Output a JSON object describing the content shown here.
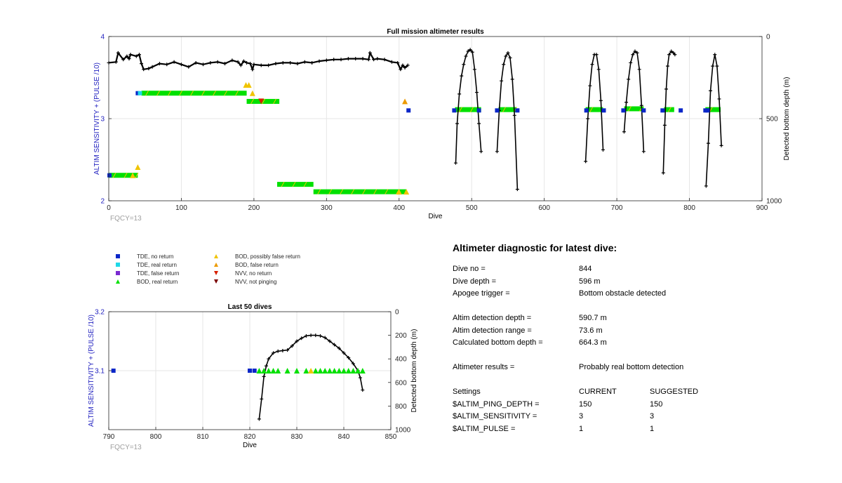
{
  "fig_bg": "#ffffff",
  "chart_data": [
    {
      "type": "scatter",
      "title": "Full mission altimeter results",
      "xlabel": "Dive",
      "ylabel": "ALTIM SENSITIVITY + (PULSE /10)",
      "y2label": "Detected bottom depth (m)",
      "xlim": [
        0,
        900
      ],
      "ylim": [
        2,
        4
      ],
      "y2lim": [
        1000,
        0
      ],
      "xticks": [
        0,
        100,
        200,
        300,
        400,
        500,
        600,
        700,
        800,
        900
      ],
      "yticks": [
        2,
        3,
        4
      ],
      "y2ticks": [
        0,
        500,
        1000
      ],
      "grid": true,
      "annotation": "FQCY=13",
      "bod_bands": [
        {
          "x": [
            45,
            190
          ],
          "y": 3.31
        },
        {
          "x": [
            190,
            235
          ],
          "y": 3.21
        },
        {
          "x": [
            0,
            40
          ],
          "y": 2.31
        },
        {
          "x": [
            232,
            282
          ],
          "y": 2.2
        },
        {
          "x": [
            282,
            410
          ],
          "y": 2.11
        },
        {
          "x": [
            477,
            513
          ],
          "y": 3.11
        },
        {
          "x": [
            537,
            562
          ],
          "y": 3.11
        },
        {
          "x": [
            657,
            681
          ],
          "y": 3.11
        },
        {
          "x": [
            710,
            737
          ],
          "y": 3.12
        },
        {
          "x": [
            765,
            779
          ],
          "y": 3.11
        },
        {
          "x": [
            822,
            843
          ],
          "y": 3.11
        }
      ],
      "series": [
        {
          "name": "TDE, no return",
          "marker": "square",
          "color": "#0a26c8",
          "x": [
            1,
            40,
            413,
            476,
            510,
            535,
            563,
            658,
            682,
            709,
            737,
            763,
            788,
            822,
            825
          ],
          "y": [
            2.31,
            3.31,
            3.1,
            3.1,
            3.1,
            3.1,
            3.1,
            3.1,
            3.1,
            3.1,
            3.1,
            3.1,
            3.1,
            3.1,
            3.1
          ]
        },
        {
          "name": "TDE, real return",
          "marker": "square",
          "color": "#1fd8e8",
          "x": [
            43
          ],
          "y": [
            3.31
          ]
        },
        {
          "name": "BOD, possibly false return",
          "marker": "triangle",
          "color": "#f0c400",
          "x": [
            40,
            33,
            189,
            193,
            198,
            400,
            410
          ],
          "y": [
            2.41,
            2.31,
            3.41,
            3.41,
            3.31,
            2.11,
            2.11
          ]
        },
        {
          "name": "BOD, false return",
          "marker": "triangle",
          "color": "#ec9a00",
          "x": [
            408
          ],
          "y": [
            3.21
          ]
        },
        {
          "name": "NVV, no return",
          "marker": "triangle-down",
          "color": "#d81e00",
          "x": [
            210
          ],
          "y": [
            3.21
          ]
        },
        {
          "name": "Altimeter sensitivity trace",
          "marker": "plus",
          "color": "#000000",
          "x": [
            0,
            10,
            13,
            20,
            25,
            28,
            30,
            38,
            42,
            45,
            48,
            55,
            60,
            70,
            80,
            90,
            100,
            110,
            120,
            130,
            140,
            150,
            160,
            170,
            178,
            182,
            186,
            190,
            195,
            198,
            200,
            210,
            220,
            230,
            240,
            250,
            260,
            270,
            280,
            290,
            300,
            310,
            320,
            330,
            340,
            350,
            358,
            360,
            365,
            370,
            380,
            390,
            398,
            402,
            405,
            408,
            412
          ],
          "y": [
            3.68,
            3.69,
            3.8,
            3.72,
            3.76,
            3.73,
            3.78,
            3.76,
            3.78,
            3.67,
            3.6,
            3.61,
            3.63,
            3.67,
            3.66,
            3.69,
            3.66,
            3.63,
            3.68,
            3.66,
            3.68,
            3.69,
            3.67,
            3.71,
            3.69,
            3.65,
            3.7,
            3.68,
            3.67,
            3.6,
            3.66,
            3.65,
            3.65,
            3.67,
            3.68,
            3.68,
            3.67,
            3.69,
            3.68,
            3.7,
            3.71,
            3.72,
            3.72,
            3.73,
            3.73,
            3.73,
            3.72,
            3.8,
            3.72,
            3.73,
            3.72,
            3.69,
            3.68,
            3.6,
            3.65,
            3.62,
            3.65
          ]
        }
      ],
      "depth_series": [
        {
          "name": "Detected bottom depth",
          "axis": "right",
          "color": "#000000",
          "segments": [
            {
              "x": [
                478,
                480,
                483,
                486,
                489,
                492,
                495,
                498,
                501,
                504,
                507,
                510,
                513
              ],
              "y": [
                770,
                530,
                350,
                240,
                170,
                120,
                90,
                80,
                95,
                200,
                340,
                530,
                700
              ]
            },
            {
              "x": [
                535,
                538,
                541,
                544,
                547,
                550,
                553,
                556,
                559,
                563
              ],
              "y": [
                700,
                450,
                270,
                170,
                120,
                100,
                130,
                260,
                480,
                930
              ]
            },
            {
              "x": [
                657,
                660,
                663,
                666,
                669,
                672,
                675,
                678,
                681
              ],
              "y": [
                760,
                500,
                300,
                170,
                110,
                110,
                200,
                390,
                690
              ]
            },
            {
              "x": [
                710,
                713,
                716,
                719,
                722,
                725,
                728,
                731,
                734,
                737
              ],
              "y": [
                580,
                400,
                260,
                160,
                110,
                90,
                100,
                200,
                420,
                700
              ]
            },
            {
              "x": [
                764,
                766,
                768,
                770,
                772,
                775,
                778,
                780
              ],
              "y": [
                830,
                540,
                320,
                180,
                110,
                90,
                100,
                110
              ]
            },
            {
              "x": [
                823,
                826,
                829,
                832,
                835,
                838,
                841,
                844
              ],
              "y": [
                910,
                650,
                330,
                180,
                110,
                180,
                380,
                664
              ]
            }
          ]
        }
      ]
    },
    {
      "type": "scatter",
      "title": "Last 50 dives",
      "xlabel": "Dive",
      "ylabel": "ALTIM SENSITIVITY + (PULSE /10)",
      "y2label": "Detected bottom depth (m)",
      "xlim": [
        790,
        850
      ],
      "ylim": [
        3.0,
        3.2
      ],
      "y2lim": [
        1000,
        0
      ],
      "xticks": [
        790,
        800,
        810,
        820,
        830,
        840,
        850
      ],
      "yticks": [
        3.1,
        3.2
      ],
      "y2ticks": [
        0,
        200,
        400,
        600,
        800,
        1000
      ],
      "grid": true,
      "annotation": "FQCY=13",
      "series": [
        {
          "name": "TDE, no return",
          "marker": "square",
          "color": "#0a26c8",
          "x": [
            791,
            820,
            821
          ],
          "y": [
            3.1,
            3.1,
            3.1
          ]
        },
        {
          "name": "BOD, real return",
          "marker": "triangle",
          "color": "#00e000",
          "x": [
            822,
            823,
            824,
            825,
            826,
            828,
            830,
            832,
            834,
            835,
            836,
            837,
            838,
            839,
            840,
            841,
            842,
            843,
            844
          ],
          "y": [
            3.1,
            3.1,
            3.1,
            3.1,
            3.1,
            3.1,
            3.1,
            3.1,
            3.1,
            3.1,
            3.1,
            3.1,
            3.1,
            3.1,
            3.1,
            3.1,
            3.1,
            3.1,
            3.1
          ]
        },
        {
          "name": "BOD, possibly false return",
          "marker": "triangle",
          "color": "#f0c400",
          "x": [
            833
          ],
          "y": [
            3.1
          ]
        }
      ],
      "depth_series": [
        {
          "name": "Detected bottom depth",
          "axis": "right",
          "color": "#000000",
          "segments": [
            {
              "x": [
                822,
                822.5,
                823,
                823.5,
                824,
                825,
                826,
                827,
                828,
                829,
                830,
                831,
                832,
                833,
                834,
                835,
                836,
                837,
                838,
                839,
                840,
                841,
                842,
                843,
                843.5,
                844
              ],
              "y": [
                910,
                740,
                550,
                460,
                400,
                350,
                335,
                330,
                325,
                290,
                250,
                225,
                205,
                200,
                200,
                205,
                220,
                250,
                280,
                310,
                350,
                390,
                440,
                500,
                560,
                664
              ]
            }
          ]
        }
      ]
    }
  ],
  "legend": {
    "items": [
      {
        "label": "TDE, no return",
        "marker": "square",
        "color": "#0a26c8"
      },
      {
        "label": "TDE, real return",
        "marker": "square",
        "color": "#1fd8e8"
      },
      {
        "label": "TDE, false return",
        "marker": "square",
        "color": "#7a2ad0"
      },
      {
        "label": "BOD, real return",
        "marker": "triangle",
        "color": "#00e000"
      },
      {
        "label": "BOD, possibly false return",
        "marker": "triangle",
        "color": "#f0c400"
      },
      {
        "label": "BOD, false return",
        "marker": "triangle",
        "color": "#ec9a00"
      },
      {
        "label": "NVV, no return",
        "marker": "triangle-down",
        "color": "#d81e00"
      },
      {
        "label": "NVV, not pinging",
        "marker": "triangle-down",
        "color": "#7a0000"
      }
    ]
  },
  "diagnostic": {
    "title": "Altimeter diagnostic for latest dive:",
    "dive_no_label": "Dive no =",
    "dive_no": "844",
    "dive_depth_label": "Dive depth =",
    "dive_depth": "596 m",
    "apogee_label": "Apogee trigger =",
    "apogee": "Bottom obstacle detected",
    "altim_det_depth_label": "Altim detection depth =",
    "altim_det_depth": "590.7 m",
    "altim_det_range_label": "Altim detection range =",
    "altim_det_range": "73.6 m",
    "calc_bottom_label": "Calculated bottom depth =",
    "calc_bottom": "664.3 m",
    "results_label": "Altimeter results =",
    "results": "Probably real bottom detection",
    "settings_label": "Settings",
    "current_label": "CURRENT",
    "suggested_label": "SUGGESTED",
    "settings": [
      {
        "name": "$ALTIM_PING_DEPTH =",
        "current": "150",
        "suggested": "150"
      },
      {
        "name": "$ALTIM_SENSITIVITY =",
        "current": "3",
        "suggested": "3"
      },
      {
        "name": "$ALTIM_PULSE =",
        "current": "1",
        "suggested": "1"
      }
    ]
  },
  "colors": {
    "axis_blue": "#1f1fbf",
    "fqcy_grey": "#a0a0a0",
    "grid": "#e6e6e6"
  }
}
